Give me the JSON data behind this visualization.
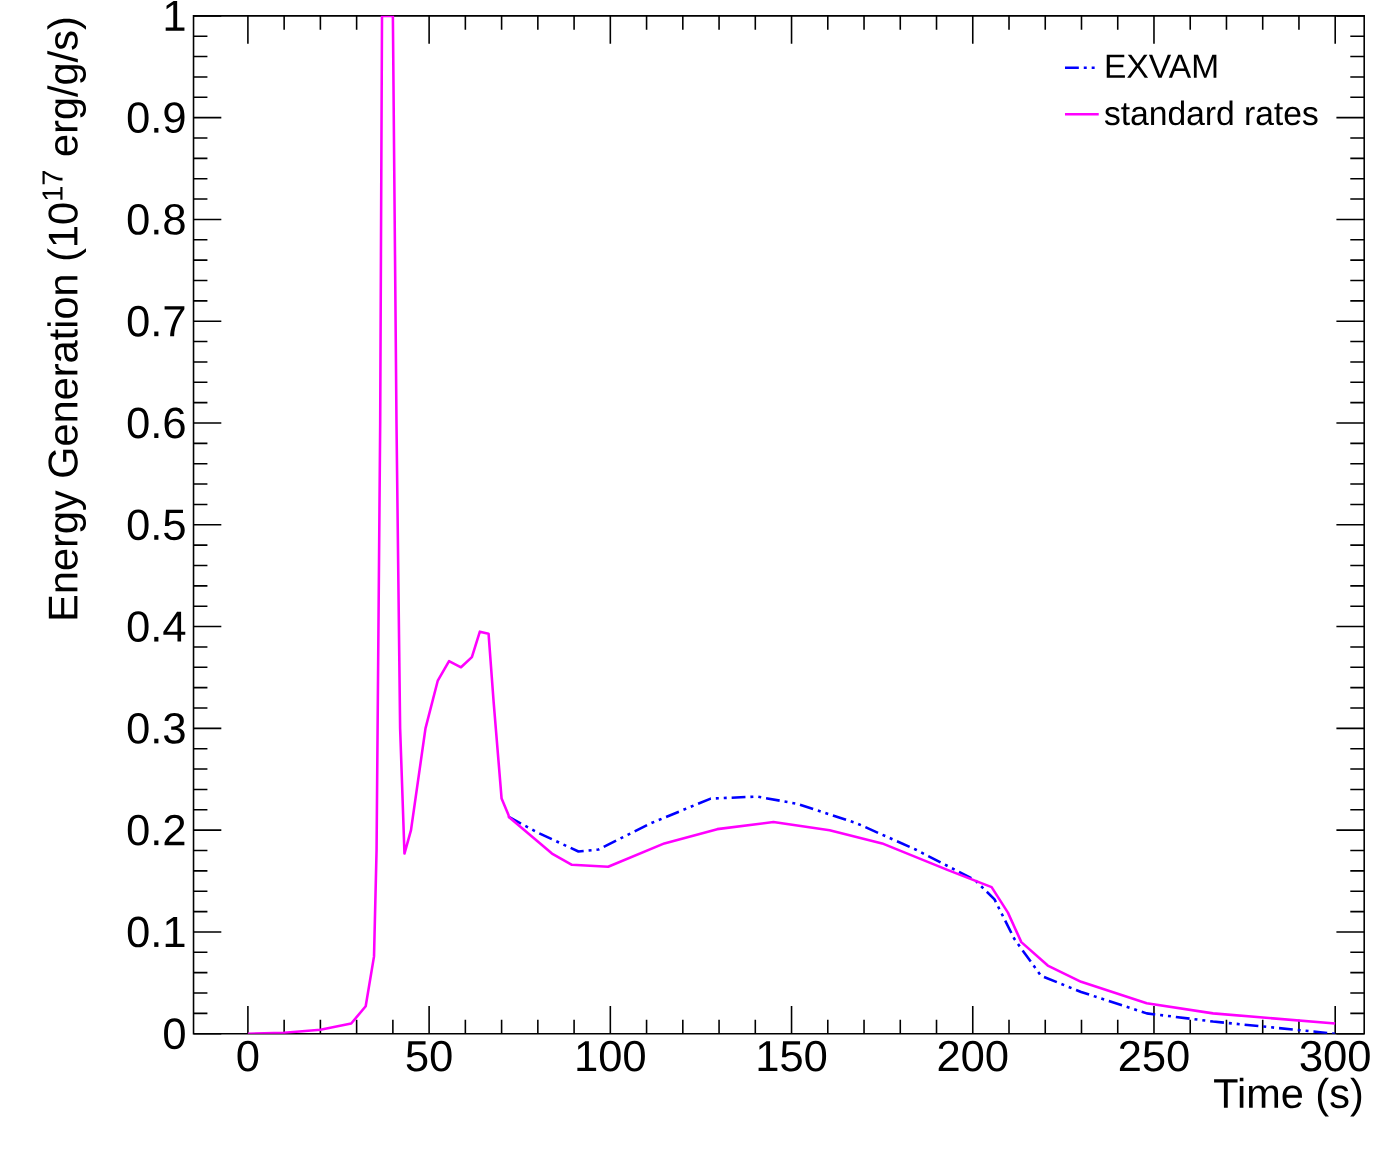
{
  "chart_data": {
    "type": "line",
    "xlabel": "Time (s)",
    "ylabel": "Energy Generation (10$^{17}$ erg/g/s)",
    "xlim": [
      -15,
      308
    ],
    "ylim": [
      0,
      1
    ],
    "xticks": [
      0,
      50,
      100,
      150,
      200,
      250,
      300
    ],
    "yticks": [
      0,
      0.1,
      0.2,
      0.3,
      0.4,
      0.5,
      0.6,
      0.7,
      0.8,
      0.9,
      1
    ],
    "legend": "top right",
    "grid": false,
    "marker": "none",
    "series": [
      {
        "name": "EXVAM",
        "color": "#0000ff",
        "line_style": "dashed",
        "x": [
          72,
          80.3,
          91.2,
          96.7,
          111.3,
          127.7,
          140.5,
          151.4,
          167.8,
          184.2,
          200.6,
          206,
          211.5,
          218.8,
          229.9,
          248,
          266.3,
          300
        ],
        "values": [
          0.213,
          0.197,
          0.179,
          0.181,
          0.207,
          0.231,
          0.233,
          0.226,
          0.207,
          0.181,
          0.151,
          0.132,
          0.093,
          0.057,
          0.041,
          0.02,
          0.012,
          0.0
        ]
      },
      {
        "name": "standard rates",
        "color": "#ff00ff",
        "line_style": "solid",
        "x": [
          0,
          10,
          20,
          28.5,
          32.5,
          34.8,
          35.5,
          36.5,
          37,
          40,
          41,
          42,
          43.2,
          45,
          49,
          52.4,
          55.5,
          58.8,
          61.8,
          64,
          66.4,
          67.8,
          70,
          71.9,
          72,
          83.9,
          89.4,
          99.4,
          114.9,
          129.5,
          145,
          160.5,
          175,
          193,
          205.2,
          209.7,
          213.4,
          220.7,
          229.9,
          248,
          266.3,
          300
        ],
        "values": [
          0,
          0.001,
          0.004,
          0.01,
          0.027,
          0.076,
          0.18,
          0.6,
          1,
          1,
          0.6,
          0.3,
          0.177,
          0.2,
          0.3,
          0.347,
          0.366,
          0.36,
          0.37,
          0.395,
          0.393,
          0.326,
          0.231,
          0.215,
          0.213,
          0.177,
          0.166,
          0.164,
          0.187,
          0.201,
          0.208,
          0.2,
          0.187,
          0.161,
          0.144,
          0.119,
          0.09,
          0.067,
          0.051,
          0.03,
          0.02,
          0.01
        ]
      }
    ]
  }
}
